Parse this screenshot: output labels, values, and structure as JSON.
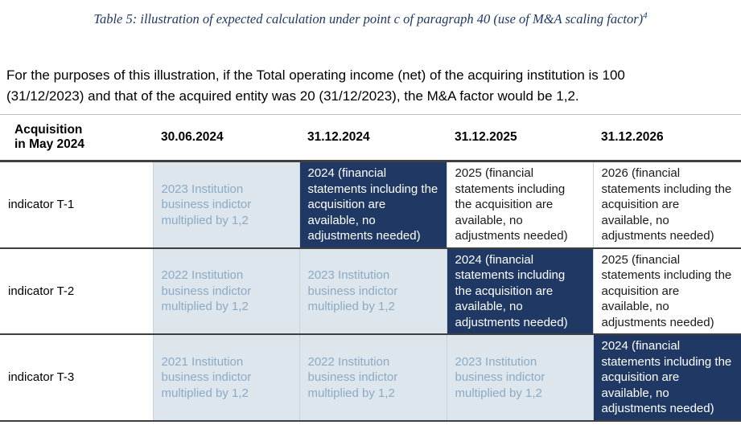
{
  "page": {
    "title": "Table 5: illustration of expected calculation under point c of paragraph 40 (use of M&A scaling factor)",
    "title_footnote": "4",
    "intro": "For the purposes of this illustration, if the Total operating income (net) of the acquiring institution is 100 (31/12/2023) and that of the acquired entity was 20 (31/12/2023), the M&A factor would be 1,2."
  },
  "colors": {
    "title-text": "#1f3864",
    "dark-cell-bg": "#1f3864",
    "dark-cell-text": "#ffffff",
    "light-cell-bg": "#dce6ec",
    "light-cell-text": "#8caac4",
    "row-border": "#3f3f3f",
    "table-top-border": "#bfbfbf",
    "cell-divider": "#ccd2d7"
  },
  "table": {
    "headers": [
      "Acquisition\nin May 2024",
      "30.06.2024",
      "31.12.2024",
      "31.12.2025",
      "31.12.2026"
    ],
    "rows": [
      {
        "label": "indicator T-1",
        "cells": [
          {
            "style": "light",
            "text": "2023 Institution business indictor multiplied by 1,2"
          },
          {
            "style": "dark",
            "text": "2024 (financial statements including the acquisition are available, no adjustments needed)"
          },
          {
            "style": "plain",
            "text": "2025 (financial statements including the acquisition are available, no adjustments needed)"
          },
          {
            "style": "plain",
            "text": "2026 (financial statements including the acquisition are available, no adjustments needed)"
          }
        ]
      },
      {
        "label": "indicator T-2",
        "cells": [
          {
            "style": "light",
            "text": "2022 Institution business indictor multiplied by 1,2"
          },
          {
            "style": "light",
            "text": "2023 Institution business indictor multiplied by 1,2"
          },
          {
            "style": "dark",
            "text": "2024 (financial statements including the acquisition are available, no adjustments needed)"
          },
          {
            "style": "plain",
            "text": "2025 (financial statements including the acquisition are available, no adjustments needed)"
          }
        ]
      },
      {
        "label": "indicator T-3",
        "cells": [
          {
            "style": "light",
            "text": "2021 Institution business indictor multiplied by 1,2"
          },
          {
            "style": "light",
            "text": "2022 Institution business indictor multiplied by 1,2"
          },
          {
            "style": "light",
            "text": "2023 Institution business indictor multiplied by 1,2"
          },
          {
            "style": "dark",
            "text": "2024 (financial statements including the acquisition are available, no adjustments needed)"
          }
        ]
      }
    ]
  }
}
